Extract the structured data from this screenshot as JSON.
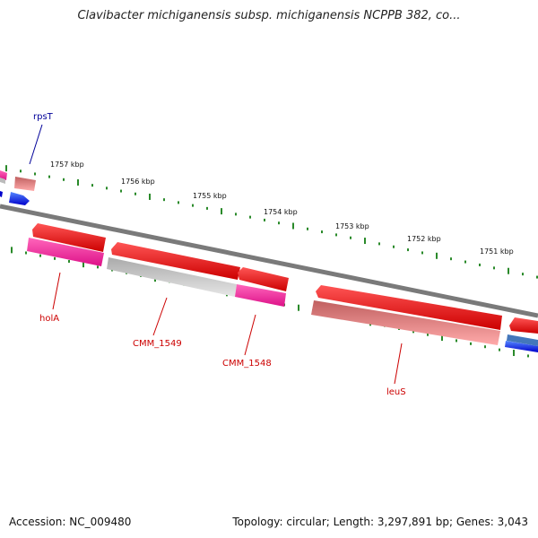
{
  "title": "Clavibacter michiganensis subsp. michiganensis NCPPB 382, co...",
  "footer": {
    "accession": "Accession: NC_009480",
    "summary": "Topology: circular; Length: 3,297,891 bp; Genes: 3,043"
  },
  "colors": {
    "backbone": "#808080",
    "tick": "#2a8a2a",
    "cds_red": "#ee0000",
    "cds_pink": "#ee3399",
    "cds_salmon": "#ee8080",
    "cds_grey": "#bbbbbb",
    "rna_blue": "#0000ee",
    "label_red": "#cc0000",
    "label_blue": "#000099"
  },
  "scale": {
    "labels": [
      "1757 kbp",
      "1756 kbp",
      "1755 kbp",
      "1754 kbp",
      "1753 kbp",
      "1752 kbp",
      "1751 kbp"
    ]
  },
  "genes": [
    {
      "label": "rpsT",
      "type": "RNA/CDS",
      "color_key": "label_blue"
    },
    {
      "label": "holA",
      "color_key": "label_red"
    },
    {
      "label": "CMM_1549",
      "color_key": "label_red"
    },
    {
      "label": "CMM_1548",
      "color_key": "label_red"
    },
    {
      "label": "leuS",
      "color_key": "label_red"
    }
  ]
}
